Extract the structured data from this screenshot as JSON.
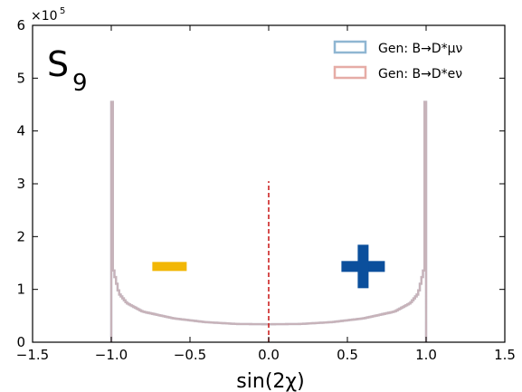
{
  "chart_data": {
    "type": "histogram",
    "panel_label": {
      "main": "S",
      "sub": "9"
    },
    "xlabel": "sin(2χ)",
    "ylabel": "",
    "y_multiplier": {
      "base": "×10",
      "exp": "5"
    },
    "xlim": [
      -1.5,
      1.5
    ],
    "ylim": [
      0,
      6
    ],
    "xticks": [
      {
        "value": -1.5,
        "label": "−1.5"
      },
      {
        "value": -1.0,
        "label": "−1.0"
      },
      {
        "value": -0.5,
        "label": "−0.5"
      },
      {
        "value": 0.0,
        "label": "0.0"
      },
      {
        "value": 0.5,
        "label": "0.5"
      },
      {
        "value": 1.0,
        "label": "1.0"
      },
      {
        "value": 1.5,
        "label": "1.5"
      }
    ],
    "yticks": [
      {
        "value": 0,
        "label": "0"
      },
      {
        "value": 1,
        "label": "1"
      },
      {
        "value": 2,
        "label": "2"
      },
      {
        "value": 3,
        "label": "3"
      },
      {
        "value": 4,
        "label": "4"
      },
      {
        "value": 5,
        "label": "5"
      },
      {
        "value": 6,
        "label": "6"
      }
    ],
    "series": [
      {
        "name": "Gen: B→D*μν",
        "color": "#8fb6d2",
        "sample_x": [
          -1.0,
          -0.99,
          -0.95,
          -0.9,
          -0.8,
          -0.6,
          -0.4,
          -0.2,
          0.0,
          0.2,
          0.4,
          0.6,
          0.8,
          0.9,
          0.95,
          0.99,
          1.0
        ],
        "sample_y": [
          4.55,
          1.42,
          0.92,
          0.74,
          0.58,
          0.45,
          0.38,
          0.345,
          0.34,
          0.345,
          0.38,
          0.45,
          0.58,
          0.74,
          0.92,
          1.42,
          4.55
        ]
      },
      {
        "name": "Gen: B→D*eν",
        "color": "#e6aca6",
        "sample_x": [
          -1.0,
          -0.99,
          -0.95,
          -0.9,
          -0.8,
          -0.6,
          -0.4,
          -0.2,
          0.0,
          0.2,
          0.4,
          0.6,
          0.8,
          0.9,
          0.95,
          0.99,
          1.0
        ],
        "sample_y": [
          4.55,
          1.42,
          0.92,
          0.74,
          0.58,
          0.45,
          0.38,
          0.345,
          0.34,
          0.345,
          0.38,
          0.45,
          0.58,
          0.74,
          0.92,
          1.42,
          4.55
        ]
      }
    ],
    "reference_line": {
      "x": 0.0,
      "y_top": 3.05,
      "style": "dashed",
      "color": "#cc2222"
    },
    "markers": [
      {
        "symbol": "minus",
        "x": -0.63,
        "y": 1.4,
        "color": "#f2b705"
      },
      {
        "symbol": "plus",
        "x": 0.6,
        "y": 1.4,
        "color": "#0b4f9c"
      }
    ],
    "legend": {
      "placement": "top-right"
    }
  }
}
